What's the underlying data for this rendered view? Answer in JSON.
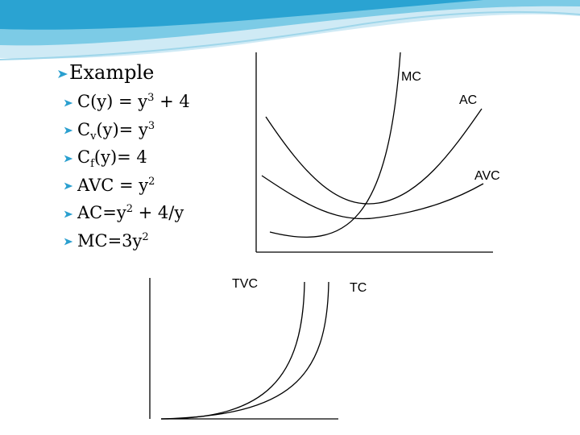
{
  "title": "Example",
  "bullets": [
    {
      "parts": [
        {
          "text": "C(y) = y"
        },
        {
          "sup": "3"
        },
        {
          "text": " + 4"
        }
      ]
    },
    {
      "parts": [
        {
          "text": "C"
        },
        {
          "sub": "v"
        },
        {
          "text": "(y)= y"
        },
        {
          "sup": "3"
        }
      ]
    },
    {
      "parts": [
        {
          "text": "C"
        },
        {
          "sub": "f"
        },
        {
          "text": "(y)= 4"
        }
      ]
    },
    {
      "parts": [
        {
          "text": "AVC = y"
        },
        {
          "sup": "2"
        }
      ]
    },
    {
      "parts": [
        {
          "text": "AC=y"
        },
        {
          "sup": "2"
        },
        {
          "text": " + 4/y"
        }
      ]
    },
    {
      "parts": [
        {
          "text": "MC=3y"
        },
        {
          "sup": "2"
        }
      ]
    }
  ],
  "cost_graph": {
    "labels": {
      "mc": "MC",
      "ac": "AC",
      "avc": "AVC"
    }
  },
  "total_graph": {
    "labels": {
      "tvc": "TVC",
      "tc": "TC"
    }
  }
}
